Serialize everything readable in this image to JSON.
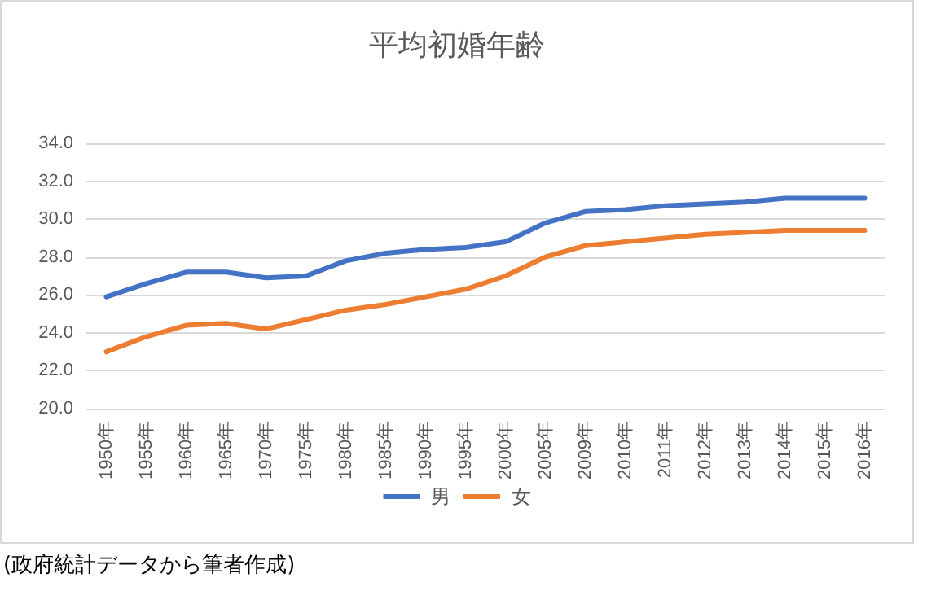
{
  "chart_data": {
    "type": "line",
    "title": "平均初婚年齢",
    "categories": [
      "1950年",
      "1955年",
      "1960年",
      "1965年",
      "1970年",
      "1975年",
      "1980年",
      "1985年",
      "1990年",
      "1995年",
      "2000年",
      "2005年",
      "2009年",
      "2010年",
      "2011年",
      "2012年",
      "2013年",
      "2014年",
      "2015年",
      "2016年"
    ],
    "series": [
      {
        "name": "男",
        "color": "#4472c4",
        "values": [
          25.9,
          26.6,
          27.2,
          27.2,
          26.9,
          27.0,
          27.8,
          28.2,
          28.4,
          28.5,
          28.8,
          29.8,
          30.4,
          30.5,
          30.7,
          30.8,
          30.9,
          31.1,
          31.1,
          31.1
        ]
      },
      {
        "name": "女",
        "color": "#ed7d31",
        "values": [
          23.0,
          23.8,
          24.4,
          24.5,
          24.2,
          24.7,
          25.2,
          25.5,
          25.9,
          26.3,
          27.0,
          28.0,
          28.6,
          28.8,
          29.0,
          29.2,
          29.3,
          29.4,
          29.4,
          29.4
        ]
      }
    ],
    "ylim": [
      20,
      34
    ],
    "yticks": [
      {
        "value": 20,
        "label": "20.0"
      },
      {
        "value": 22,
        "label": "22.0"
      },
      {
        "value": 24,
        "label": "24.0"
      },
      {
        "value": 26,
        "label": "26.0"
      },
      {
        "value": 28,
        "label": "28.0"
      },
      {
        "value": 30,
        "label": "30.0"
      },
      {
        "value": 32,
        "label": "32.0"
      },
      {
        "value": 34,
        "label": "34.0"
      }
    ],
    "grid": "y",
    "legend": "bottom",
    "marker": "none",
    "line_style": "solid",
    "annotations": [
      "(政府統計データから筆者作成)"
    ]
  }
}
